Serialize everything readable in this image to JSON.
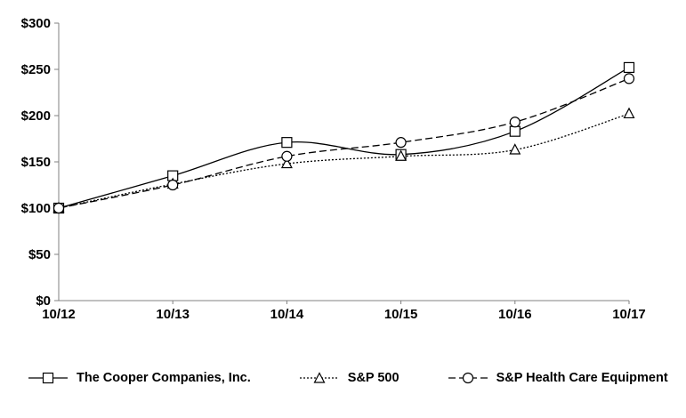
{
  "chart_data": {
    "type": "line",
    "title": "",
    "xlabel": "",
    "ylabel": "",
    "categories": [
      "10/12",
      "10/13",
      "10/14",
      "10/15",
      "10/16",
      "10/17"
    ],
    "y_tick_values": [
      0,
      50,
      100,
      150,
      200,
      250,
      300
    ],
    "y_tick_labels": [
      "$0",
      "$50",
      "$100",
      "$150",
      "$200",
      "$250",
      "$300"
    ],
    "ylim": [
      0,
      300
    ],
    "grid": false,
    "legend_position": "bottom",
    "series": [
      {
        "id": "cooper",
        "name": "The Cooper Companies, Inc.",
        "marker": "square",
        "line_style": "solid",
        "values": [
          100,
          135,
          171,
          158,
          183,
          252
        ]
      },
      {
        "id": "sp500",
        "name": "S&P 500",
        "marker": "triangle",
        "line_style": "dotted",
        "values": [
          100,
          126,
          148,
          156,
          163,
          202
        ]
      },
      {
        "id": "sp-healthcare-equipment",
        "name": "S&P Health Care Equipment",
        "marker": "circle",
        "line_style": "dashed",
        "values": [
          100,
          125,
          156,
          171,
          193,
          240
        ]
      }
    ],
    "colors": {
      "series_line": "#000000",
      "marker_fill": "#ffffff",
      "axis": "#808080",
      "text": "#000000",
      "background": "#ffffff"
    }
  }
}
